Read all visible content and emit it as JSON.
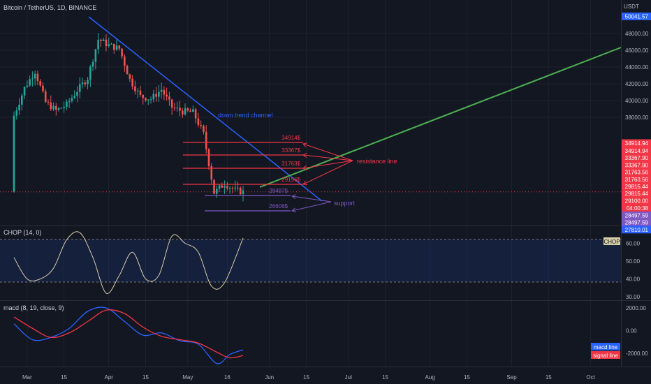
{
  "header": {
    "title": "Bitcoin / TetherUS, 1D, BINANCE",
    "currency": "USDT"
  },
  "colors": {
    "background": "#131722",
    "up": "#26a69a",
    "down": "#ef5350",
    "trend": "#2962ff",
    "projection": "#4caf50",
    "resistance": "#f23645",
    "support": "#7e57c2",
    "chop": "#d6cfa8",
    "macd": "#2962ff",
    "signal": "#f23645"
  },
  "price_pane": {
    "y_ticks": [
      "48000.00",
      "46000.00",
      "44000.00",
      "42000.00",
      "40000.00",
      "38000.00"
    ],
    "price_tags": [
      {
        "text": "50041.57",
        "price": 50041.57,
        "color": "#2962ff"
      },
      {
        "text": "34914.94",
        "price": 34914.94,
        "color": "#f23645"
      },
      {
        "text": "34914.94",
        "price": 34000,
        "color": "#f23645"
      },
      {
        "text": "33367.90",
        "price": 33150,
        "color": "#f23645"
      },
      {
        "text": "33367.90",
        "price": 32300,
        "color": "#f23645"
      },
      {
        "text": "31763.56",
        "price": 31460,
        "color": "#f23645"
      },
      {
        "text": "31763.56",
        "price": 30600,
        "color": "#f23645"
      },
      {
        "text": "29815.44",
        "price": 29760,
        "color": "#f23645"
      },
      {
        "text": "29815.44",
        "price": 28900,
        "color": "#f23645"
      },
      {
        "text": "29100.00",
        "price": 28030,
        "color": "#f23645"
      },
      {
        "text": "04:00:38",
        "price": 27170,
        "color": "#f23645"
      },
      {
        "text": "28497.59",
        "price": 26300,
        "color": "#7e57c2"
      },
      {
        "text": "28497.59",
        "price": 25450,
        "color": "#7e57c2"
      },
      {
        "text": "27810.01",
        "price": 24600,
        "color": "#2962ff"
      }
    ],
    "annotations": {
      "trend": "down trend channel",
      "resistance": "resistance line",
      "support": "support"
    },
    "levels": [
      {
        "label": "34914$",
        "price": 34914,
        "kind": "resistance"
      },
      {
        "label": "33367$",
        "price": 33367,
        "kind": "resistance"
      },
      {
        "label": "31763$",
        "price": 31763,
        "kind": "resistance"
      },
      {
        "label": "29196$",
        "price": 29196,
        "kind": "resistance"
      },
      {
        "label": "28497$",
        "price": 28497,
        "kind": "support"
      },
      {
        "label": "26606$",
        "price": 26606,
        "kind": "support"
      }
    ]
  },
  "chop_pane": {
    "title": "CHOP (14, 0)",
    "badge": "CHOP",
    "y_ticks": [
      "60.00",
      "50.00",
      "40.00",
      "30.00"
    ]
  },
  "macd_pane": {
    "title": "macd (8, 19, close, 9)",
    "y_ticks": [
      "2000.00",
      "0.00",
      "-2000.00"
    ],
    "legend": [
      "macd line",
      "signal line"
    ]
  },
  "x_axis": {
    "labels": [
      "Mar",
      "15",
      "Apr",
      "15",
      "May",
      "16",
      "Jun",
      "15",
      "Jul",
      "15",
      "Aug",
      "15",
      "Sep",
      "15",
      "Oct"
    ]
  },
  "chart_data": [
    {
      "type": "line",
      "title": "Bitcoin / TetherUS, 1D, BINANCE",
      "x": [
        "Feb 24",
        "Feb 28",
        "Mar 4",
        "Mar 8",
        "Mar 12",
        "Mar 16",
        "Mar 20",
        "Mar 24",
        "Mar 28",
        "Apr 1",
        "Apr 5",
        "Apr 9",
        "Apr 13",
        "Apr 17",
        "Apr 21",
        "Apr 25",
        "Apr 29",
        "May 3",
        "May 7",
        "May 11",
        "May 15",
        "May 19",
        "May 22"
      ],
      "series": [
        {
          "values": [
            38200,
            41500,
            43500,
            39800,
            38800,
            39500,
            41200,
            42700,
            47300,
            46600,
            46200,
            42500,
            40500,
            40200,
            41300,
            39200,
            38700,
            38600,
            36000,
            29000,
            30100,
            29300,
            29100
          ]
        }
      ],
      "ylim": [
        27000,
        50100
      ],
      "price_levels": {
        "resistance": [
          34914,
          33367,
          31763,
          29196
        ],
        "support": [
          28497,
          26606
        ]
      }
    },
    {
      "type": "line",
      "title": "CHOP (14, 0)",
      "x": [
        "Feb 24",
        "Mar 1",
        "Mar 6",
        "Mar 11",
        "Mar 16",
        "Mar 21",
        "Mar 26",
        "Mar 31",
        "Apr 5",
        "Apr 10",
        "Apr 15",
        "Apr 20",
        "Apr 25",
        "Apr 30",
        "May 5",
        "May 10",
        "May 15",
        "May 22"
      ],
      "series": [
        {
          "name": "CHOP",
          "values": [
            52,
            40,
            40,
            46,
            62,
            66,
            52,
            32,
            42,
            55,
            40,
            42,
            64,
            60,
            55,
            36,
            38,
            63
          ]
        }
      ],
      "ylim": [
        28,
        66
      ]
    },
    {
      "type": "line",
      "title": "macd (8, 19, close, 9)",
      "x": [
        "Feb 24",
        "Mar 3",
        "Mar 10",
        "Mar 17",
        "Mar 24",
        "Mar 31",
        "Apr 7",
        "Apr 14",
        "Apr 21",
        "Apr 28",
        "May 5",
        "May 12",
        "May 17",
        "May 22"
      ],
      "series": [
        {
          "name": "macd line",
          "values": [
            600,
            -800,
            -600,
            200,
            1700,
            2000,
            800,
            -400,
            -200,
            -900,
            -1200,
            -2900,
            -2100,
            -1700
          ]
        },
        {
          "name": "signal line",
          "values": [
            1200,
            200,
            -600,
            -200,
            800,
            1800,
            1500,
            300,
            -500,
            -800,
            -1100,
            -1900,
            -2400,
            -2200
          ]
        }
      ],
      "ylim": [
        -3400,
        2400
      ]
    }
  ]
}
